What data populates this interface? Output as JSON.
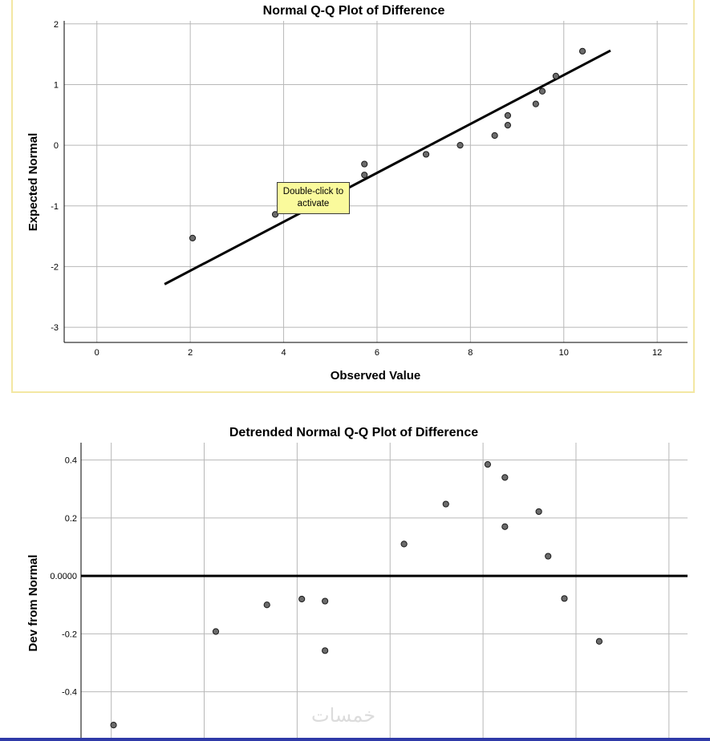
{
  "tooltip": {
    "line1": "Double-click to",
    "line2": "activate"
  },
  "watermark": "خمسات",
  "colors": {
    "point_fill": "#6b6b6b",
    "line": "#000000",
    "grid": "#b8b8b8",
    "frame": "#f3e7a3",
    "tooltip_bg": "#fafa9c"
  },
  "chart_data": [
    {
      "type": "scatter",
      "title": "Normal Q-Q Plot of Difference",
      "xlabel": "Observed Value",
      "ylabel": "Expected Normal",
      "xlim": [
        -0.7,
        12.65
      ],
      "ylim": [
        -3.25,
        2.05
      ],
      "xticks": [
        0,
        2,
        4,
        6,
        8,
        10,
        12
      ],
      "yticks": [
        2,
        1,
        0,
        -1,
        -2,
        -3
      ],
      "xtick_labels": [
        "0",
        "2",
        "4",
        "6",
        "8",
        "10",
        "12"
      ],
      "ytick_labels": [
        "2",
        "1",
        "0",
        "-1",
        "-2",
        "-3"
      ],
      "grid": true,
      "reference_line": {
        "x": [
          1.45,
          11.0
        ],
        "y": [
          -2.29,
          1.56
        ]
      },
      "points": [
        {
          "x": 2.05,
          "y": -1.53
        },
        {
          "x": 3.82,
          "y": -1.14
        },
        {
          "x": 5.73,
          "y": -0.49
        },
        {
          "x": 5.73,
          "y": -0.31
        },
        {
          "x": 7.05,
          "y": -0.15
        },
        {
          "x": 7.78,
          "y": 0.0
        },
        {
          "x": 8.52,
          "y": 0.16
        },
        {
          "x": 8.8,
          "y": 0.33
        },
        {
          "x": 8.8,
          "y": 0.49
        },
        {
          "x": 9.4,
          "y": 0.68
        },
        {
          "x": 9.54,
          "y": 0.89
        },
        {
          "x": 9.83,
          "y": 1.14
        },
        {
          "x": 10.4,
          "y": 1.55
        }
      ]
    },
    {
      "type": "scatter",
      "title": "Detrended Normal Q-Q Plot of Difference",
      "xlabel": "",
      "ylabel": "Dev from Normal",
      "xlim": [
        -0.65,
        12.4
      ],
      "ylim": [
        -0.57,
        0.46
      ],
      "yticks": [
        0.4,
        0.2,
        0.0,
        -0.2,
        -0.4
      ],
      "ytick_labels": [
        "0.4",
        "0.2",
        "0.0000",
        "-0.2",
        "-0.4"
      ],
      "grid": true,
      "reference_line": {
        "y": 0.0
      },
      "points": [
        {
          "x": 0.05,
          "y": -0.515
        },
        {
          "x": 2.25,
          "y": -0.192
        },
        {
          "x": 3.35,
          "y": -0.1
        },
        {
          "x": 4.1,
          "y": -0.08
        },
        {
          "x": 4.6,
          "y": -0.087
        },
        {
          "x": 4.6,
          "y": -0.258
        },
        {
          "x": 6.3,
          "y": 0.11
        },
        {
          "x": 7.2,
          "y": 0.248
        },
        {
          "x": 8.1,
          "y": 0.385
        },
        {
          "x": 8.47,
          "y": 0.34
        },
        {
          "x": 8.47,
          "y": 0.17
        },
        {
          "x": 9.2,
          "y": 0.222
        },
        {
          "x": 9.4,
          "y": 0.068
        },
        {
          "x": 9.75,
          "y": -0.078
        },
        {
          "x": 10.5,
          "y": -0.226
        }
      ]
    }
  ]
}
